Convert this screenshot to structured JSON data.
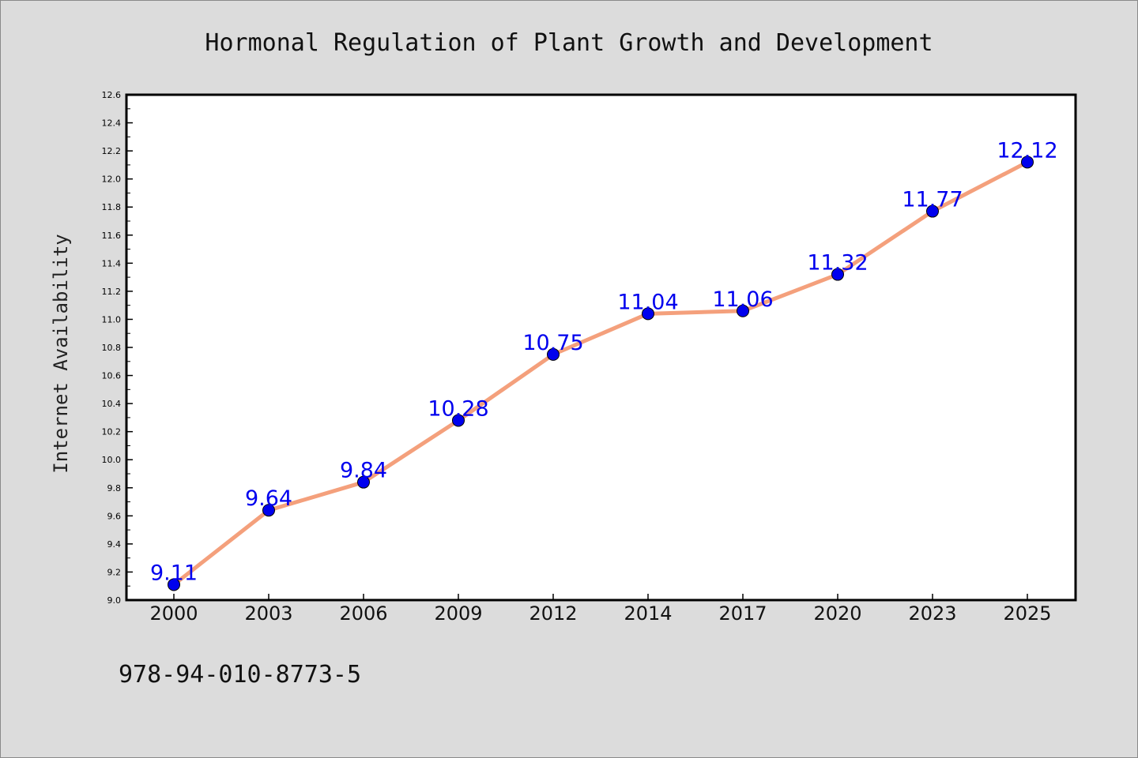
{
  "chart_data": {
    "type": "line",
    "title": "Hormonal Regulation of Plant Growth and Development",
    "xlabel": "",
    "ylabel": "Internet Availability",
    "categories": [
      "2000",
      "2003",
      "2006",
      "2009",
      "2012",
      "2014",
      "2017",
      "2020",
      "2023",
      "2025"
    ],
    "values": [
      9.11,
      9.64,
      9.84,
      10.28,
      10.75,
      11.04,
      11.06,
      11.32,
      11.77,
      12.12
    ],
    "data_labels": [
      "9.11",
      "9.64",
      "9.84",
      "10.28",
      "10.75",
      "11.04",
      "11.06",
      "11.32",
      "11.77",
      "12.12"
    ],
    "ylim": [
      9.0,
      12.6
    ],
    "yticks": [
      "9.0",
      "9.2",
      "9.4",
      "9.6",
      "9.8",
      "10.0",
      "10.2",
      "10.4",
      "10.6",
      "10.8",
      "11.0",
      "11.2",
      "11.4",
      "11.6",
      "11.8",
      "12.0",
      "12.2",
      "12.4",
      "12.6"
    ],
    "grid": false,
    "legend": "none",
    "colors": {
      "line": "#f4a07c",
      "marker": "#0000ee",
      "data_label": "#0000ee",
      "plot_background": "#ffffff",
      "page_background": "#dcdcdc"
    }
  },
  "footer": {
    "isbn": "978-94-010-8773-5"
  }
}
